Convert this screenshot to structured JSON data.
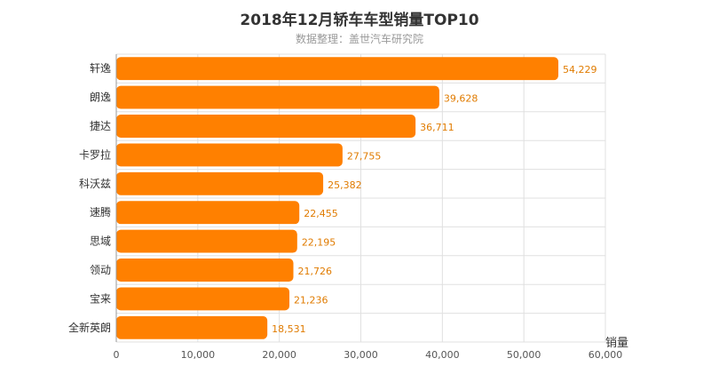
{
  "chart_data": {
    "type": "bar",
    "orientation": "horizontal",
    "title": "2018年12月轿车车型销量TOP10",
    "subtitle": "数据整理：盖世汽车研究院",
    "xlabel": "销量",
    "ylabel": "",
    "categories": [
      "轩逸",
      "朗逸",
      "捷达",
      "卡罗拉",
      "科沃兹",
      "速腾",
      "思域",
      "领动",
      "宝来",
      "全新英朗"
    ],
    "values": [
      54229,
      39628,
      36711,
      27755,
      25382,
      22455,
      22195,
      21726,
      21236,
      18531
    ],
    "value_labels": [
      "54,229",
      "39,628",
      "36,711",
      "27,755",
      "25,382",
      "22,455",
      "22,195",
      "21,726",
      "21,236",
      "18,531"
    ],
    "xlim": [
      0,
      60000
    ],
    "ticks": [
      0,
      10000,
      20000,
      30000,
      40000,
      50000,
      60000
    ],
    "tick_labels": [
      "0",
      "10,000",
      "20,000",
      "30,000",
      "40,000",
      "50,000",
      "60,000"
    ],
    "grid": true,
    "legend": "none",
    "colors": {
      "bar": "#ff8000",
      "data_label": "#e07b00",
      "grid": "#e0e0e0",
      "axis": "#999999"
    }
  }
}
